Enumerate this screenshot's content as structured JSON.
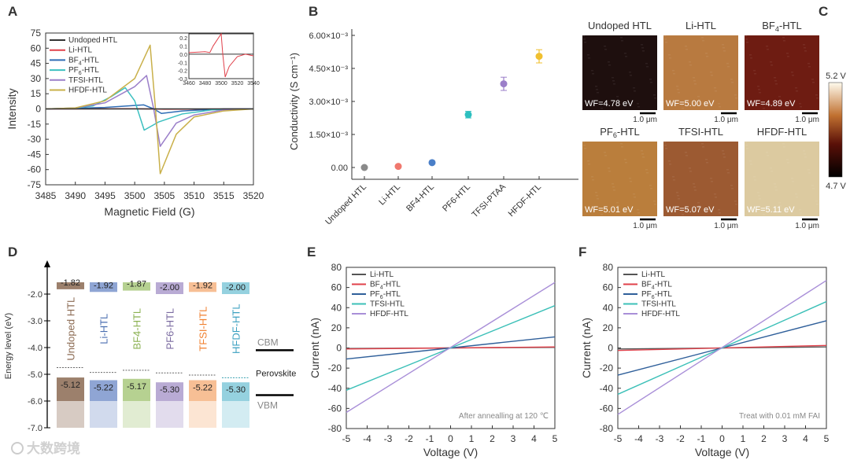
{
  "watermark": "大数跨境",
  "chart_data": [
    {
      "panel": "A",
      "type": "line",
      "xlabel": "Magnetic Field (G)",
      "ylabel": "Intensity",
      "xlim": [
        3485,
        3520
      ],
      "ylim": [
        -75,
        75
      ],
      "xticks": [
        "3485",
        "3490",
        "3495",
        "3500",
        "3505",
        "3510",
        "3515",
        "3520"
      ],
      "yticks": [
        "75",
        "60",
        "45",
        "30",
        "15",
        "0",
        "-15",
        "-30",
        "-45",
        "-60",
        "-75"
      ],
      "legend_position": "top-left",
      "series": [
        {
          "name": "Undoped HTL",
          "color": "#333333",
          "x": [
            3485,
            3520
          ],
          "y": [
            0,
            0
          ]
        },
        {
          "name": "Li-HTL",
          "color": "#e0404a",
          "x": [
            3485,
            3500,
            3502,
            3505,
            3520
          ],
          "y": [
            0,
            0.2,
            0,
            -0.25,
            0
          ]
        },
        {
          "name": "BF4-HTL",
          "label_main": "BF",
          "label_sub": "4",
          "label_rest": "-HTL",
          "color": "#2f6db5",
          "x": [
            3485,
            3495,
            3501.5,
            3503.2,
            3504.5,
            3508,
            3515,
            3520
          ],
          "y": [
            0,
            1.5,
            4,
            0,
            -4.5,
            -2,
            0,
            0
          ]
        },
        {
          "name": "PF6-HTL",
          "label_main": "PF",
          "label_sub": "6",
          "label_rest": "-HTL",
          "color": "#3cc0c0",
          "x": [
            3485,
            3490,
            3493,
            3496,
            3498.4,
            3500,
            3501.6,
            3504,
            3508,
            3513,
            3520
          ],
          "y": [
            0,
            1,
            3,
            12,
            21,
            8,
            -21,
            -13,
            -5,
            -1,
            0
          ]
        },
        {
          "name": "TFSI-HTL",
          "color": "#9b7fc9",
          "x": [
            3485,
            3490,
            3495,
            3500,
            3502,
            3503.2,
            3504.3,
            3507,
            3510,
            3515,
            3520
          ],
          "y": [
            0,
            1,
            6,
            22,
            33,
            0,
            -37,
            -14,
            -6,
            -1,
            0
          ]
        },
        {
          "name": "HFDF-HTL",
          "color": "#c9b04a",
          "x": [
            3485,
            3490,
            3495,
            3500,
            3502.6,
            3503.5,
            3504.3,
            3507,
            3510,
            3515,
            3520
          ],
          "y": [
            0,
            1,
            8,
            30,
            63,
            0,
            -64,
            -25,
            -8,
            -2,
            0
          ]
        }
      ],
      "inset": {
        "xlim": [
          3460,
          3540
        ],
        "ylim": [
          -0.3,
          0.25
        ],
        "xticks": [
          "3460",
          "3480",
          "3500",
          "3520",
          "3540"
        ],
        "yticks": [
          "0.2",
          "0.1",
          "0.0",
          "-0.1",
          "-0.2",
          "-0.3"
        ],
        "series": [
          {
            "name": "Undoped HTL",
            "color": "#333333",
            "x": [
              3460,
              3540
            ],
            "y": [
              0,
              0
            ]
          },
          {
            "name": "Li-HTL",
            "color": "#e0404a",
            "x": [
              3460,
              3480,
              3486,
              3490,
              3500,
              3502,
              3505,
              3510,
              3520,
              3530,
              3540
            ],
            "y": [
              0.02,
              0.03,
              0.02,
              0.1,
              0.25,
              0,
              -0.28,
              -0.15,
              -0.03,
              0,
              -0.02
            ]
          }
        ]
      }
    },
    {
      "panel": "B",
      "type": "scatter",
      "ylabel": "Conductivity (S cm⁻¹)",
      "ylim": [
        0,
        0.006
      ],
      "yticks": [
        {
          "value": 0.006,
          "label": "6.00×10⁻³"
        },
        {
          "value": 0.0045,
          "label": "4.50×10⁻³"
        },
        {
          "value": 0.003,
          "label": "3.00×10⁻³"
        },
        {
          "value": 0.0015,
          "label": "1.50×10⁻³"
        },
        {
          "value": 0,
          "label": "0.00"
        }
      ],
      "categories": [
        "Undoped HTL",
        "Li-HTL",
        "BF4-HTL",
        "PF6-HTL",
        "TFSI-PTAA",
        "HFDF-HTL"
      ],
      "values": [
        0.0,
        5e-05,
        0.00022,
        0.0024,
        0.0038,
        0.00505
      ],
      "errors": [
        3e-05,
        3e-05,
        4e-05,
        0.00015,
        0.0003,
        0.0003
      ],
      "colors": [
        "#8a8a8a",
        "#f0786e",
        "#4a7fc8",
        "#2cbfbf",
        "#9b7fc9",
        "#f0c030"
      ]
    },
    {
      "panel": "C",
      "type": "heatmap",
      "images": [
        {
          "title": "Undoped HTL",
          "wf": "WF=4.78 eV",
          "color": "#1e0f0e"
        },
        {
          "title": "Li-HTL",
          "wf": "WF=5.00 eV",
          "color": "#b87a40"
        },
        {
          "title": "BF4-HTL",
          "title_main": "BF",
          "title_sub": "4",
          "title_rest": "-HTL",
          "wf": "WF=4.89 eV",
          "color": "#6e1c12"
        },
        {
          "title": "PF6-HTL",
          "title_main": "PF",
          "title_sub": "6",
          "title_rest": "-HTL",
          "wf": "WF=5.01 eV",
          "color": "#ba7e3c"
        },
        {
          "title": "TFSI-HTL",
          "wf": "WF=5.07 eV",
          "color": "#9c5a32"
        },
        {
          "title": "HFDF-HTL",
          "wf": "WF=5.11 eV",
          "color": "#dccaa0"
        }
      ],
      "scale_bar": "1.0 μm",
      "colorbar": {
        "max": "5.2 V",
        "min": "4.7 V"
      }
    },
    {
      "panel": "D",
      "type": "bar",
      "ylabel": "Energy level (eV)",
      "ylim": [
        -7.0,
        -1.5
      ],
      "yticks": [
        "-2.0",
        "-3.0",
        "-4.0",
        "-5.0",
        "-6.0",
        "-7.0"
      ],
      "categories": [
        "Undoped HTL",
        "Li-HTL",
        "BF4-HTL",
        "PF6-HTL",
        "TFSI-HTL",
        "HFDF-HTL"
      ],
      "cbm": [
        -1.82,
        -1.92,
        -1.87,
        -2.0,
        -1.92,
        -2.0
      ],
      "cbm_labels": [
        "-1.82",
        "-1.92",
        "-1.87",
        "-2.00",
        "-1.92",
        "-2.00"
      ],
      "vbm": [
        -5.12,
        -5.22,
        -5.17,
        -5.3,
        -5.22,
        -5.3
      ],
      "vbm_labels": [
        "-5.12",
        "-5.22",
        "-5.17",
        "-5.30",
        "-5.22",
        "-5.30"
      ],
      "fermi_levels": [
        -4.75,
        -4.93,
        -4.85,
        -4.95,
        -5.03,
        -5.13
      ],
      "colors": [
        "#8b6a52",
        "#7b95cc",
        "#a9c97e",
        "#ad9ccc",
        "#f6b482",
        "#82c9d9"
      ],
      "perovskite": {
        "label": "Perovskite",
        "cbm_label": "CBM",
        "vbm_label": "VBM",
        "cbm": -4.1,
        "vbm": -5.78
      }
    },
    {
      "panel": "E",
      "type": "line",
      "xlabel": "Voltage (V)",
      "ylabel": "Current (nA)",
      "xlim": [
        -5,
        5
      ],
      "ylim": [
        -80,
        80
      ],
      "xticks": [
        "-5",
        "-4",
        "-3",
        "-2",
        "-1",
        "0",
        "1",
        "2",
        "3",
        "4",
        "5"
      ],
      "yticks": [
        "80",
        "60",
        "40",
        "20",
        "0",
        "-20",
        "-40",
        "-60",
        "-80"
      ],
      "annotation": "After annealling at 120 ℃",
      "legend_position": "top-left",
      "series": [
        {
          "name": "Li-HTL",
          "color": "#555555",
          "x": [
            -5,
            5
          ],
          "y": [
            -0.5,
            0.5
          ]
        },
        {
          "name": "BF4-HTL",
          "label_main": "BF",
          "label_sub": "4",
          "label_rest": "-HTL",
          "color": "#e0404a",
          "x": [
            -5,
            5
          ],
          "y": [
            -1,
            1
          ]
        },
        {
          "name": "PF6-HTL",
          "label_main": "PF",
          "label_sub": "6",
          "label_rest": "-HTL",
          "color": "#2f5f9a",
          "x": [
            -5,
            5
          ],
          "y": [
            -11,
            11
          ]
        },
        {
          "name": "TFSI-HTL",
          "color": "#3cc0b8",
          "x": [
            -5,
            5
          ],
          "y": [
            -42,
            42
          ]
        },
        {
          "name": "HFDF-HTL",
          "color": "#a98fd8",
          "x": [
            -5,
            5
          ],
          "y": [
            -64,
            65
          ]
        }
      ]
    },
    {
      "panel": "F",
      "type": "line",
      "xlabel": "Voltage (V)",
      "ylabel": "Current (nA)",
      "xlim": [
        -5,
        5
      ],
      "ylim": [
        -80,
        80
      ],
      "xticks": [
        "-5",
        "-4",
        "-3",
        "-2",
        "-1",
        "0",
        "1",
        "2",
        "3",
        "4",
        "5"
      ],
      "yticks": [
        "80",
        "60",
        "40",
        "20",
        "0",
        "-20",
        "-40",
        "-60",
        "-80"
      ],
      "annotation": "Treat with 0.01 mM FAI",
      "legend_position": "top-left",
      "series": [
        {
          "name": "Li-HTL",
          "color": "#555555",
          "x": [
            -5,
            5
          ],
          "y": [
            -1,
            1
          ]
        },
        {
          "name": "BF4-HTL",
          "label_main": "BF",
          "label_sub": "4",
          "label_rest": "-HTL",
          "color": "#e0404a",
          "x": [
            -5,
            5
          ],
          "y": [
            -2.5,
            2.5
          ]
        },
        {
          "name": "PF6-HTL",
          "label_main": "PF",
          "label_sub": "6",
          "label_rest": "-HTL",
          "color": "#2f5f9a",
          "x": [
            -5,
            5
          ],
          "y": [
            -27,
            27
          ]
        },
        {
          "name": "TFSI-HTL",
          "color": "#3cc0b8",
          "x": [
            -5,
            5
          ],
          "y": [
            -46,
            46
          ]
        },
        {
          "name": "HFDF-HTL",
          "color": "#a98fd8",
          "x": [
            -5,
            5
          ],
          "y": [
            -66,
            67
          ]
        }
      ]
    }
  ]
}
